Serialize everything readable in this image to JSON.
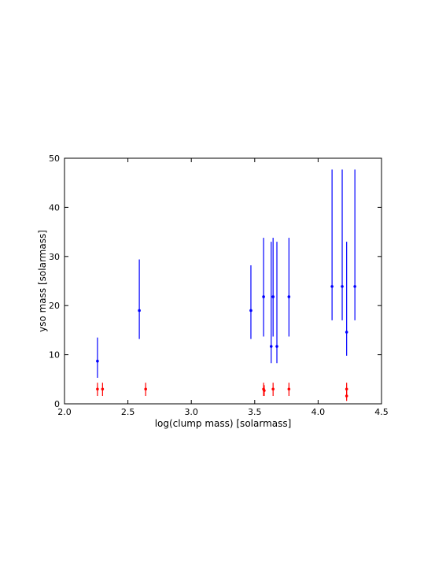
{
  "chart_data": {
    "type": "scatter",
    "title": "",
    "xlabel": "log(clump mass) [solarmass]",
    "ylabel": "yso mass [solarmass]",
    "xlim": [
      2.0,
      4.5
    ],
    "ylim": [
      0,
      50
    ],
    "xticks": [
      "2.0",
      "2.5",
      "3.0",
      "3.5",
      "4.0",
      "4.5"
    ],
    "yticks": [
      "0",
      "10",
      "20",
      "30",
      "40",
      "50"
    ],
    "grid": false,
    "legend": false,
    "series": [
      {
        "color": "#0000ff",
        "points": [
          {
            "x": 2.26,
            "y": 8.7,
            "ylo": 5.3,
            "yhi": 13.5
          },
          {
            "x": 2.59,
            "y": 19.0,
            "ylo": 13.2,
            "yhi": 29.4
          },
          {
            "x": 3.47,
            "y": 19.0,
            "ylo": 13.2,
            "yhi": 28.2
          },
          {
            "x": 3.57,
            "y": 21.8,
            "ylo": 13.7,
            "yhi": 33.8
          },
          {
            "x": 3.63,
            "y": 11.7,
            "ylo": 8.3,
            "yhi": 33.0
          },
          {
            "x": 3.645,
            "y": 21.8,
            "ylo": 13.7,
            "yhi": 33.8
          },
          {
            "x": 3.675,
            "y": 11.7,
            "ylo": 8.3,
            "yhi": 33.0
          },
          {
            "x": 3.77,
            "y": 21.8,
            "ylo": 13.7,
            "yhi": 33.8
          },
          {
            "x": 4.11,
            "y": 23.9,
            "ylo": 17.0,
            "yhi": 47.7
          },
          {
            "x": 4.19,
            "y": 23.9,
            "ylo": 17.0,
            "yhi": 47.7
          },
          {
            "x": 4.225,
            "y": 14.6,
            "ylo": 9.8,
            "yhi": 33.0
          },
          {
            "x": 4.29,
            "y": 23.9,
            "ylo": 17.0,
            "yhi": 47.7
          }
        ]
      },
      {
        "color": "#ff0000",
        "points": [
          {
            "x": 2.26,
            "y": 3.0,
            "ylo": 1.6,
            "yhi": 4.3
          },
          {
            "x": 2.3,
            "y": 3.0,
            "ylo": 1.6,
            "yhi": 4.3
          },
          {
            "x": 2.64,
            "y": 3.0,
            "ylo": 1.6,
            "yhi": 4.3
          },
          {
            "x": 3.57,
            "y": 3.0,
            "ylo": 1.6,
            "yhi": 4.3
          },
          {
            "x": 3.575,
            "y": 2.7,
            "ylo": 1.6,
            "yhi": 3.8
          },
          {
            "x": 3.645,
            "y": 3.0,
            "ylo": 1.6,
            "yhi": 4.3
          },
          {
            "x": 3.77,
            "y": 3.0,
            "ylo": 1.6,
            "yhi": 4.3
          },
          {
            "x": 4.225,
            "y": 3.0,
            "ylo": 1.6,
            "yhi": 4.3
          },
          {
            "x": 4.225,
            "y": 1.6,
            "ylo": 0.6,
            "yhi": 2.6
          }
        ]
      }
    ]
  }
}
